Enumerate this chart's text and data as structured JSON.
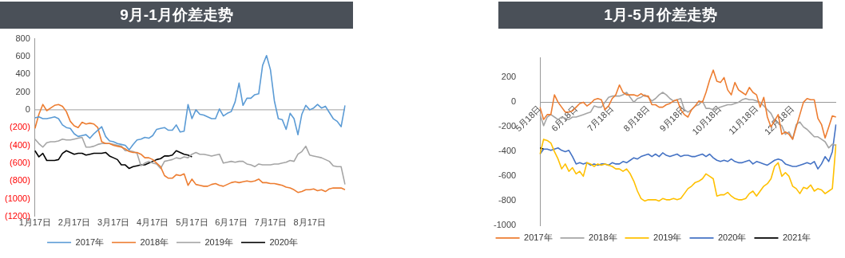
{
  "chart_data": [
    {
      "type": "line",
      "title": "9月-1月价差走势",
      "categories": [
        "1月17日",
        null,
        null,
        null,
        null,
        null,
        null,
        null,
        null,
        null,
        "2月17日",
        null,
        null,
        null,
        null,
        null,
        null,
        null,
        null,
        null,
        "3月17日",
        null,
        null,
        null,
        null,
        null,
        null,
        null,
        null,
        null,
        "4月17日",
        null,
        null,
        null,
        null,
        null,
        null,
        null,
        null,
        null,
        "5月17日",
        null,
        null,
        null,
        null,
        null,
        null,
        null,
        null,
        null,
        "6月17日",
        null,
        null,
        null,
        null,
        null,
        null,
        null,
        null,
        null,
        "7月17日",
        null,
        null,
        null,
        null,
        null,
        null,
        null,
        null,
        null,
        "8月17日",
        null,
        null,
        null,
        null,
        null,
        null,
        null,
        null,
        null
      ],
      "series": [
        {
          "name": "2017年",
          "color": "#5b9bd5",
          "values": [
            -90,
            -80,
            -100,
            -100,
            -90,
            -80,
            -100,
            -170,
            -200,
            -210,
            -270,
            -300,
            -290,
            -280,
            -320,
            -270,
            -230,
            -190,
            -300,
            -350,
            -360,
            -380,
            -390,
            -400,
            -450,
            -390,
            -340,
            -330,
            -310,
            -320,
            -290,
            -220,
            -210,
            -200,
            -230,
            -230,
            -170,
            -250,
            -240,
            60,
            -100,
            0,
            -50,
            -60,
            -80,
            -100,
            -100,
            10,
            -70,
            -40,
            -20,
            90,
            300,
            50,
            130,
            130,
            170,
            180,
            500,
            610,
            450,
            100,
            -100,
            -110,
            -220,
            -40,
            -100,
            -280,
            -50,
            50,
            0,
            20,
            60,
            20,
            40,
            -30,
            -100,
            -130,
            -190,
            50
          ]
        },
        {
          "name": "2018年",
          "color": "#ed7d31",
          "values": [
            -210,
            -50,
            60,
            -10,
            20,
            50,
            60,
            40,
            -20,
            -130,
            -180,
            -200,
            -140,
            -160,
            -150,
            -160,
            -200,
            -360,
            -380,
            -380,
            -400,
            -410,
            -420,
            -440,
            -470,
            -480,
            -480,
            -500,
            -540,
            -540,
            -560,
            -600,
            -640,
            -740,
            -770,
            -770,
            -730,
            -740,
            -720,
            -850,
            -780,
            -840,
            -850,
            -860,
            -860,
            -840,
            -830,
            -850,
            -860,
            -840,
            -820,
            -810,
            -820,
            -810,
            -800,
            -810,
            -800,
            -780,
            -820,
            -820,
            -830,
            -830,
            -840,
            -850,
            -870,
            -880,
            -900,
            -930,
            -920,
            -900,
            -900,
            -890,
            -910,
            -900,
            -920,
            -890,
            -880,
            -880,
            -880,
            -900
          ]
        },
        {
          "name": "2019年",
          "color": "#a5a5a5",
          "values": [
            -330,
            -380,
            -420,
            -370,
            -360,
            -360,
            -350,
            -330,
            -340,
            -340,
            -330,
            -320,
            -310,
            -420,
            -420,
            -410,
            -390,
            -380,
            -380,
            -380,
            -390,
            -400,
            -410,
            -460,
            -460,
            -470,
            -490,
            -630,
            -600,
            -580,
            -600,
            -610,
            -660,
            -580,
            -570,
            -560,
            -540,
            -550,
            -530,
            -540,
            -500,
            -480,
            -500,
            -500,
            -510,
            -520,
            -510,
            -500,
            -600,
            -590,
            -580,
            -590,
            -580,
            -580,
            -610,
            -620,
            -640,
            -610,
            -620,
            -620,
            -620,
            -610,
            -610,
            -600,
            -590,
            -570,
            -580,
            -500,
            -470,
            -410,
            -510,
            -520,
            -530,
            -540,
            -560,
            -580,
            -630,
            -640,
            -640,
            -840
          ]
        },
        {
          "name": "2020年",
          "color": "#000000",
          "values": [
            -460,
            -530,
            -490,
            -570,
            -570,
            -570,
            -560,
            -490,
            -460,
            -480,
            -500,
            -490,
            -490,
            -510,
            -500,
            -490,
            -490,
            -490,
            -480,
            -520,
            -540,
            -560,
            -620,
            -620,
            -660,
            -640,
            -630,
            -620,
            -620,
            -600,
            -580,
            -560,
            -550,
            -520,
            -520,
            -510,
            -460,
            -480,
            -500,
            -510,
            -530,
            null,
            null,
            null,
            null,
            null,
            null,
            null,
            null,
            null,
            null,
            null,
            null,
            null,
            null,
            null,
            null,
            null,
            null,
            null,
            null,
            null,
            null,
            null,
            null,
            null,
            null,
            null,
            null,
            null,
            null,
            null,
            null,
            null,
            null,
            null,
            null,
            null,
            null,
            null
          ]
        }
      ],
      "ylim": [
        -1200,
        800
      ],
      "yticks": [
        800,
        600,
        400,
        200,
        0,
        {
          "value": -200,
          "label": "(200)"
        },
        {
          "value": -400,
          "label": "(400)"
        },
        {
          "value": -600,
          "label": "(600)"
        },
        {
          "value": -800,
          "label": "(800)"
        },
        {
          "value": -1000,
          "label": "(1000)"
        },
        {
          "value": -1200,
          "label": "(1200)"
        }
      ],
      "ref_lines": [
        {
          "axis": "y",
          "value": 0,
          "color": "#a0a0a0"
        }
      ],
      "grid": false,
      "legend": "bottom",
      "marker": "none",
      "line_style": "solid"
    },
    {
      "type": "line",
      "title": "1月-5月价差走势",
      "categories": [
        "5月18日",
        null,
        null,
        null,
        null,
        null,
        null,
        null,
        null,
        null,
        "6月18日",
        null,
        null,
        null,
        null,
        null,
        null,
        null,
        null,
        null,
        "7月18日",
        null,
        null,
        null,
        null,
        null,
        null,
        null,
        null,
        null,
        "8月18日",
        null,
        null,
        null,
        null,
        null,
        null,
        null,
        null,
        null,
        "9月18日",
        null,
        null,
        null,
        null,
        null,
        null,
        null,
        null,
        null,
        "10月18日",
        null,
        null,
        null,
        null,
        null,
        null,
        null,
        null,
        null,
        "11月18日",
        null,
        null,
        null,
        null,
        null,
        null,
        null,
        null,
        null,
        "12月18日",
        null,
        null,
        null,
        null,
        null,
        null,
        null,
        null,
        null,
        null,
        null,
        null
      ],
      "series": [
        {
          "name": "2017年",
          "color": "#ed7d31",
          "values": [
            -40,
            -140,
            -100,
            -100,
            60,
            0,
            -40,
            -80,
            -80,
            -70,
            -40,
            -10,
            0,
            -30,
            -10,
            20,
            30,
            20,
            -60,
            -30,
            30,
            60,
            140,
            80,
            60,
            60,
            60,
            50,
            70,
            50,
            50,
            -20,
            -20,
            -40,
            -40,
            -20,
            -10,
            10,
            20,
            -60,
            -100,
            -120,
            -60,
            -30,
            10,
            0,
            80,
            180,
            260,
            170,
            160,
            200,
            100,
            60,
            160,
            100,
            80,
            60,
            120,
            80,
            60,
            -40,
            40,
            -120,
            -200,
            -150,
            -100,
            -260,
            -240,
            -260,
            -300,
            -200,
            -100,
            0,
            30,
            20,
            20,
            -130,
            -180,
            -290,
            -200,
            -110,
            -120
          ]
        },
        {
          "name": "2018年",
          "color": "#a5a5a5",
          "values": [
            -100,
            -190,
            -120,
            -100,
            -120,
            -140,
            -120,
            -130,
            -140,
            -120,
            -120,
            -110,
            -100,
            -90,
            -80,
            -30,
            -40,
            -40,
            0,
            40,
            50,
            50,
            50,
            60,
            80,
            40,
            0,
            30,
            40,
            60,
            40,
            10,
            30,
            60,
            80,
            60,
            30,
            10,
            20,
            30,
            -60,
            -80,
            -60,
            -30,
            -20,
            10,
            -50,
            -50,
            -60,
            -50,
            -40,
            -30,
            -20,
            -20,
            -10,
            0,
            20,
            30,
            20,
            20,
            10,
            0,
            -30,
            -60,
            -90,
            -150,
            -170,
            -190,
            -260,
            -240,
            -300,
            -180,
            -160,
            -200,
            -220,
            -250,
            -280,
            -280,
            -300,
            -320,
            -370,
            -340,
            -350
          ]
        },
        {
          "name": "2019年",
          "color": "#ffc000",
          "values": [
            -420,
            -300,
            -310,
            -330,
            -400,
            -460,
            -540,
            -500,
            -560,
            -530,
            -580,
            -560,
            -600,
            -490,
            -500,
            -520,
            -500,
            -510,
            -500,
            -510,
            -520,
            -540,
            -540,
            -560,
            -540,
            -580,
            -640,
            -720,
            -780,
            -800,
            -790,
            -790,
            -790,
            -800,
            -780,
            -790,
            -790,
            -780,
            -790,
            -780,
            -740,
            -700,
            -680,
            -650,
            -640,
            -620,
            -580,
            -600,
            -620,
            -760,
            -750,
            -750,
            -730,
            -760,
            -780,
            -790,
            -790,
            -780,
            -740,
            -720,
            -760,
            -720,
            -680,
            -660,
            -620,
            -520,
            -490,
            -600,
            -570,
            -600,
            -680,
            -700,
            -740,
            -690,
            -700,
            -670,
            -720,
            -700,
            -710,
            -740,
            -720,
            -700,
            -340
          ]
        },
        {
          "name": "2020年",
          "color": "#4472c4",
          "values": [
            -420,
            -380,
            -380,
            -390,
            -380,
            -370,
            -390,
            -400,
            -390,
            -440,
            -500,
            -490,
            -500,
            -490,
            -510,
            -500,
            -510,
            -500,
            -500,
            -510,
            -490,
            -500,
            -500,
            -480,
            -490,
            -470,
            -450,
            -460,
            -440,
            -430,
            -420,
            -440,
            -420,
            -440,
            -410,
            -430,
            -440,
            -430,
            -420,
            -440,
            -430,
            -430,
            -440,
            -440,
            -430,
            -420,
            -440,
            -420,
            -450,
            -470,
            -480,
            -470,
            -480,
            -460,
            -480,
            -490,
            -490,
            -480,
            -470,
            -500,
            -480,
            -490,
            -500,
            -510,
            -490,
            -470,
            -460,
            -470,
            -500,
            -510,
            -520,
            -520,
            -510,
            -500,
            -490,
            -500,
            -480,
            -540,
            -500,
            -440,
            -480,
            -400,
            -180
          ]
        },
        {
          "name": "2021年",
          "color": "#000000",
          "values": [
            -370,
            -380,
            null,
            null,
            null,
            null,
            null,
            null,
            null,
            null,
            null,
            null,
            null,
            null,
            null,
            null,
            null,
            null,
            null,
            null,
            null,
            null,
            null,
            null,
            null,
            null,
            null,
            null,
            null,
            null,
            null,
            null,
            null,
            null,
            null,
            null,
            null,
            null,
            null,
            null,
            null,
            null,
            null,
            null,
            null,
            null,
            null,
            null,
            null,
            null,
            null,
            null,
            null,
            null,
            null,
            null,
            null,
            null,
            null,
            null,
            null,
            null,
            null,
            null,
            null,
            null,
            null,
            null,
            null,
            null,
            null,
            null,
            null,
            null,
            null,
            null,
            null,
            null,
            null,
            null,
            null,
            null,
            null
          ]
        }
      ],
      "ylim": [
        -1000,
        360
      ],
      "yticks": [
        -1000,
        -800,
        -600,
        -400,
        -200,
        0,
        200
      ],
      "grid": false,
      "legend": "bottom",
      "marker": "none",
      "line_style": "solid"
    }
  ]
}
